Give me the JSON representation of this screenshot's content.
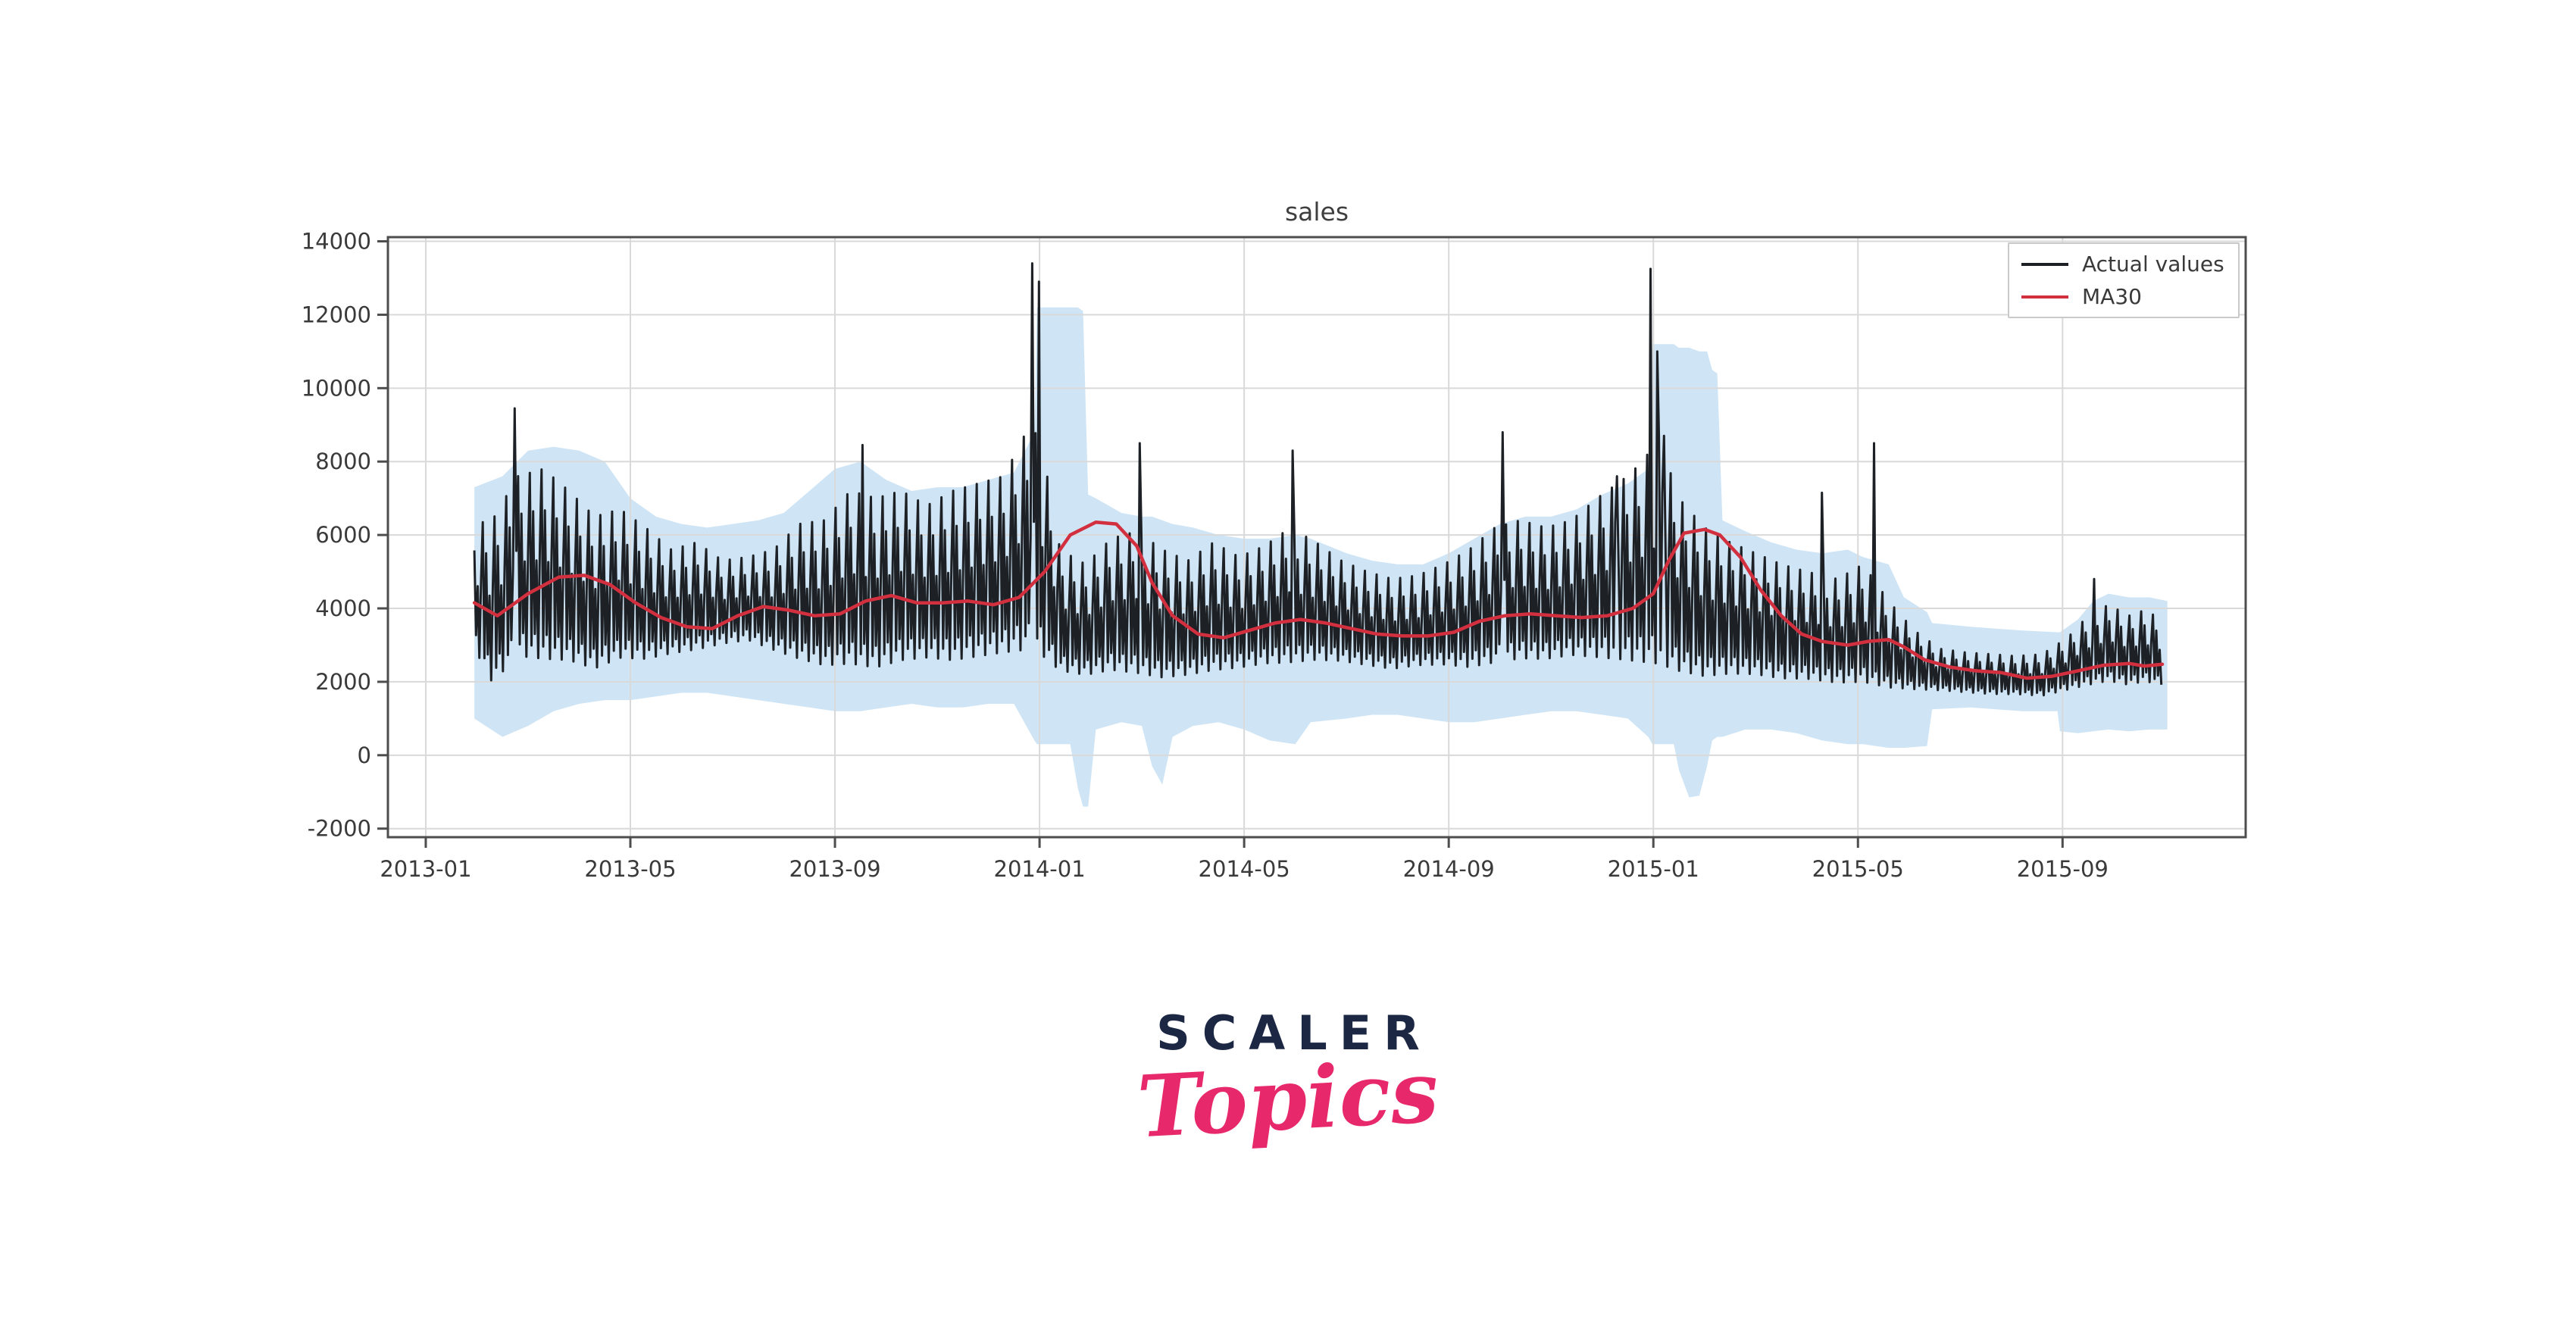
{
  "page": {
    "background": "#ffffff"
  },
  "logo": {
    "wordmark": "SCALER",
    "script": "Topics",
    "wordmark_color": "#1b2743",
    "script_color": "#e7286a"
  },
  "chart_data": {
    "type": "line",
    "title": "sales",
    "grid": true,
    "legend_position": "top-right",
    "legend": {
      "entries": [
        {
          "label": "Actual values",
          "color": "#1d2125"
        },
        {
          "label": "MA30",
          "color": "#d22f3f"
        }
      ]
    },
    "x_axis": {
      "unit": "months since 2013-01",
      "range": [
        -0.74,
        35.58
      ],
      "ticks": [
        {
          "t": 0,
          "label": "2013-01"
        },
        {
          "t": 4,
          "label": "2013-05"
        },
        {
          "t": 8,
          "label": "2013-09"
        },
        {
          "t": 12,
          "label": "2014-01"
        },
        {
          "t": 16,
          "label": "2014-05"
        },
        {
          "t": 20,
          "label": "2014-09"
        },
        {
          "t": 24,
          "label": "2015-01"
        },
        {
          "t": 28,
          "label": "2015-05"
        },
        {
          "t": 32,
          "label": "2015-09"
        }
      ]
    },
    "y_axis": {
      "range": [
        -2233,
        14114
      ],
      "ticks": [
        -2000,
        0,
        2000,
        4000,
        6000,
        8000,
        10000,
        12000,
        14000
      ]
    },
    "band": {
      "name": "prediction interval",
      "color": "#cfe5f5",
      "points": [
        [
          0.95,
          1000,
          7300
        ],
        [
          1.5,
          500,
          7600
        ],
        [
          2.0,
          800,
          8300
        ],
        [
          2.5,
          1200,
          8400
        ],
        [
          3.0,
          1400,
          8300
        ],
        [
          3.5,
          1500,
          8000
        ],
        [
          4.0,
          1500,
          7000
        ],
        [
          4.5,
          1600,
          6500
        ],
        [
          5.0,
          1700,
          6300
        ],
        [
          5.5,
          1700,
          6200
        ],
        [
          6.0,
          1600,
          6300
        ],
        [
          6.5,
          1500,
          6400
        ],
        [
          7.0,
          1400,
          6600
        ],
        [
          7.5,
          1300,
          7200
        ],
        [
          8.0,
          1200,
          7800
        ],
        [
          8.5,
          1200,
          8000
        ],
        [
          9.0,
          1300,
          7500
        ],
        [
          9.5,
          1400,
          7200
        ],
        [
          10.0,
          1300,
          7300
        ],
        [
          10.5,
          1300,
          7300
        ],
        [
          11.0,
          1400,
          7500
        ],
        [
          11.5,
          1400,
          7700
        ],
        [
          11.9,
          400,
          8800
        ],
        [
          11.95,
          300,
          12200
        ],
        [
          12.6,
          300,
          12200
        ],
        [
          12.75,
          -900,
          12200
        ],
        [
          12.85,
          -1400,
          12100
        ],
        [
          12.95,
          -1400,
          7100
        ],
        [
          13.1,
          700,
          7000
        ],
        [
          13.6,
          900,
          6600
        ],
        [
          14.0,
          800,
          6500
        ],
        [
          14.2,
          -300,
          6500
        ],
        [
          14.4,
          -800,
          6400
        ],
        [
          14.6,
          500,
          6300
        ],
        [
          15.0,
          800,
          6200
        ],
        [
          15.5,
          900,
          6000
        ],
        [
          16.0,
          700,
          5900
        ],
        [
          16.5,
          400,
          5900
        ],
        [
          17.0,
          300,
          6000
        ],
        [
          17.3,
          900,
          5900
        ],
        [
          18.0,
          1000,
          5500
        ],
        [
          18.5,
          1100,
          5300
        ],
        [
          19.0,
          1100,
          5200
        ],
        [
          19.5,
          1000,
          5200
        ],
        [
          20.0,
          900,
          5500
        ],
        [
          20.5,
          900,
          5900
        ],
        [
          21.0,
          1000,
          6300
        ],
        [
          21.5,
          1100,
          6500
        ],
        [
          22.0,
          1200,
          6500
        ],
        [
          22.5,
          1200,
          6700
        ],
        [
          23.0,
          1100,
          7100
        ],
        [
          23.5,
          1000,
          7400
        ],
        [
          23.9,
          500,
          7800
        ],
        [
          23.98,
          300,
          11200
        ],
        [
          24.4,
          300,
          11200
        ],
        [
          24.5,
          -400,
          11100
        ],
        [
          24.7,
          -1150,
          11100
        ],
        [
          24.9,
          -1100,
          11000
        ],
        [
          25.05,
          -300,
          11000
        ],
        [
          25.15,
          400,
          10500
        ],
        [
          25.25,
          500,
          10400
        ],
        [
          25.35,
          500,
          6400
        ],
        [
          25.8,
          700,
          6100
        ],
        [
          26.3,
          700,
          5800
        ],
        [
          26.8,
          600,
          5600
        ],
        [
          27.3,
          400,
          5500
        ],
        [
          27.8,
          300,
          5600
        ],
        [
          28.1,
          300,
          5400
        ],
        [
          28.6,
          200,
          5200
        ],
        [
          28.9,
          200,
          4300
        ],
        [
          29.35,
          250,
          3900
        ],
        [
          29.45,
          1250,
          3600
        ],
        [
          30.2,
          1300,
          3500
        ],
        [
          30.7,
          1250,
          3450
        ],
        [
          31.2,
          1200,
          3400
        ],
        [
          31.9,
          1200,
          3350
        ],
        [
          31.95,
          650,
          3350
        ],
        [
          32.3,
          600,
          3700
        ],
        [
          32.6,
          650,
          4200
        ],
        [
          32.9,
          700,
          4400
        ],
        [
          33.3,
          650,
          4300
        ],
        [
          33.7,
          700,
          4300
        ],
        [
          34.05,
          700,
          4200
        ]
      ]
    },
    "series": [
      {
        "name": "Actual values",
        "color": "#1d2125",
        "width": 3,
        "start_month": 0.95,
        "end_month": 33.95,
        "step_months": 0.03285,
        "weekly_pattern": [
          0.8,
          0.18,
          0.55,
          0.06,
          0.62,
          1.0,
          0.12
        ],
        "envelope": [
          [
            0.95,
            2700,
            6300
          ],
          [
            1.3,
            1700,
            6400
          ],
          [
            1.8,
            2400,
            7600
          ],
          [
            2.3,
            2300,
            7800
          ],
          [
            2.8,
            2300,
            7200
          ],
          [
            3.3,
            2100,
            6500
          ],
          [
            3.8,
            2400,
            6700
          ],
          [
            4.3,
            2400,
            6200
          ],
          [
            4.8,
            2600,
            5600
          ],
          [
            5.3,
            2700,
            5800
          ],
          [
            5.8,
            2900,
            5300
          ],
          [
            6.3,
            3000,
            5400
          ],
          [
            6.8,
            2700,
            5600
          ],
          [
            7.3,
            2400,
            6300
          ],
          [
            7.8,
            2200,
            6400
          ],
          [
            8.3,
            2200,
            7200
          ],
          [
            8.8,
            2100,
            7000
          ],
          [
            9.3,
            2300,
            7200
          ],
          [
            9.8,
            2400,
            6800
          ],
          [
            10.3,
            2300,
            7200
          ],
          [
            10.8,
            2400,
            7400
          ],
          [
            11.3,
            2500,
            7600
          ],
          [
            11.7,
            2500,
            8700
          ],
          [
            12.0,
            2400,
            8800
          ],
          [
            12.4,
            2100,
            5600
          ],
          [
            12.9,
            2000,
            5200
          ],
          [
            13.4,
            2100,
            5900
          ],
          [
            13.9,
            2000,
            6100
          ],
          [
            14.4,
            1900,
            5600
          ],
          [
            14.9,
            2000,
            5300
          ],
          [
            15.4,
            2100,
            5800
          ],
          [
            15.9,
            2200,
            5400
          ],
          [
            16.4,
            2300,
            5700
          ],
          [
            16.9,
            2300,
            6200
          ],
          [
            17.4,
            2400,
            5800
          ],
          [
            17.9,
            2400,
            5300
          ],
          [
            18.4,
            2300,
            5000
          ],
          [
            18.9,
            2200,
            4800
          ],
          [
            19.4,
            2300,
            4900
          ],
          [
            19.9,
            2300,
            5200
          ],
          [
            20.4,
            2200,
            5600
          ],
          [
            20.9,
            2300,
            6200
          ],
          [
            21.4,
            2400,
            6400
          ],
          [
            21.9,
            2400,
            6200
          ],
          [
            22.4,
            2500,
            6400
          ],
          [
            22.9,
            2400,
            7000
          ],
          [
            23.4,
            2300,
            7500
          ],
          [
            23.8,
            2200,
            8000
          ],
          [
            24.1,
            2100,
            8700
          ],
          [
            24.5,
            2000,
            7000
          ],
          [
            25.0,
            1900,
            6200
          ],
          [
            25.5,
            2000,
            5800
          ],
          [
            26.0,
            2000,
            5500
          ],
          [
            26.5,
            1900,
            5200
          ],
          [
            27.0,
            1900,
            5000
          ],
          [
            27.6,
            1800,
            4800
          ],
          [
            28.1,
            1800,
            5200
          ],
          [
            28.6,
            1700,
            4200
          ],
          [
            29.1,
            1700,
            3400
          ],
          [
            29.6,
            1700,
            2900
          ],
          [
            30.1,
            1650,
            2800
          ],
          [
            30.6,
            1600,
            2750
          ],
          [
            31.1,
            1600,
            2700
          ],
          [
            31.6,
            1550,
            2750
          ],
          [
            32.1,
            1700,
            3200
          ],
          [
            32.5,
            1800,
            3800
          ],
          [
            32.9,
            1900,
            4100
          ],
          [
            33.3,
            1800,
            3800
          ],
          [
            33.6,
            1900,
            3950
          ],
          [
            33.95,
            1800,
            3700
          ]
        ],
        "spikes": [
          [
            1.75,
            9450
          ],
          [
            8.55,
            8450
          ],
          [
            11.87,
            13400
          ],
          [
            12.0,
            12900
          ],
          [
            13.97,
            8500
          ],
          [
            16.95,
            8300
          ],
          [
            21.05,
            8800
          ],
          [
            23.3,
            7600
          ],
          [
            23.95,
            13250
          ],
          [
            24.08,
            11000
          ],
          [
            24.2,
            8700
          ],
          [
            27.3,
            7150
          ],
          [
            28.32,
            8500
          ],
          [
            32.62,
            4800
          ]
        ]
      },
      {
        "name": "MA30",
        "color": "#d22f3f",
        "width": 4.5,
        "points": [
          [
            0.95,
            4150
          ],
          [
            1.4,
            3800
          ],
          [
            2.0,
            4400
          ],
          [
            2.6,
            4850
          ],
          [
            3.1,
            4900
          ],
          [
            3.6,
            4650
          ],
          [
            4.1,
            4150
          ],
          [
            4.6,
            3750
          ],
          [
            5.1,
            3500
          ],
          [
            5.6,
            3450
          ],
          [
            6.1,
            3800
          ],
          [
            6.6,
            4050
          ],
          [
            7.1,
            3950
          ],
          [
            7.6,
            3800
          ],
          [
            8.1,
            3850
          ],
          [
            8.6,
            4200
          ],
          [
            9.1,
            4350
          ],
          [
            9.6,
            4150
          ],
          [
            10.1,
            4150
          ],
          [
            10.6,
            4200
          ],
          [
            11.1,
            4100
          ],
          [
            11.6,
            4300
          ],
          [
            12.1,
            5000
          ],
          [
            12.6,
            6000
          ],
          [
            13.1,
            6350
          ],
          [
            13.5,
            6300
          ],
          [
            13.9,
            5700
          ],
          [
            14.2,
            4700
          ],
          [
            14.6,
            3800
          ],
          [
            15.1,
            3300
          ],
          [
            15.6,
            3200
          ],
          [
            16.1,
            3400
          ],
          [
            16.6,
            3600
          ],
          [
            17.1,
            3700
          ],
          [
            17.6,
            3600
          ],
          [
            18.1,
            3450
          ],
          [
            18.6,
            3300
          ],
          [
            19.1,
            3250
          ],
          [
            19.6,
            3250
          ],
          [
            20.1,
            3350
          ],
          [
            20.6,
            3650
          ],
          [
            21.1,
            3800
          ],
          [
            21.6,
            3850
          ],
          [
            22.1,
            3800
          ],
          [
            22.6,
            3750
          ],
          [
            23.1,
            3800
          ],
          [
            23.6,
            4000
          ],
          [
            24.0,
            4400
          ],
          [
            24.3,
            5300
          ],
          [
            24.6,
            6050
          ],
          [
            25.0,
            6150
          ],
          [
            25.3,
            6000
          ],
          [
            25.7,
            5400
          ],
          [
            26.1,
            4500
          ],
          [
            26.5,
            3800
          ],
          [
            26.9,
            3300
          ],
          [
            27.3,
            3100
          ],
          [
            27.8,
            3000
          ],
          [
            28.2,
            3100
          ],
          [
            28.6,
            3150
          ],
          [
            28.9,
            2950
          ],
          [
            29.3,
            2600
          ],
          [
            29.8,
            2400
          ],
          [
            30.3,
            2300
          ],
          [
            30.8,
            2250
          ],
          [
            31.3,
            2100
          ],
          [
            31.8,
            2150
          ],
          [
            32.3,
            2300
          ],
          [
            32.8,
            2450
          ],
          [
            33.3,
            2500
          ],
          [
            33.6,
            2430
          ],
          [
            33.95,
            2480
          ]
        ]
      }
    ],
    "style": {
      "grid_color": "#d9d9d9",
      "spine_color": "#4d4d4d",
      "tick_label_color": "#3a3a3a",
      "title_color": "#3f3f3f"
    }
  }
}
